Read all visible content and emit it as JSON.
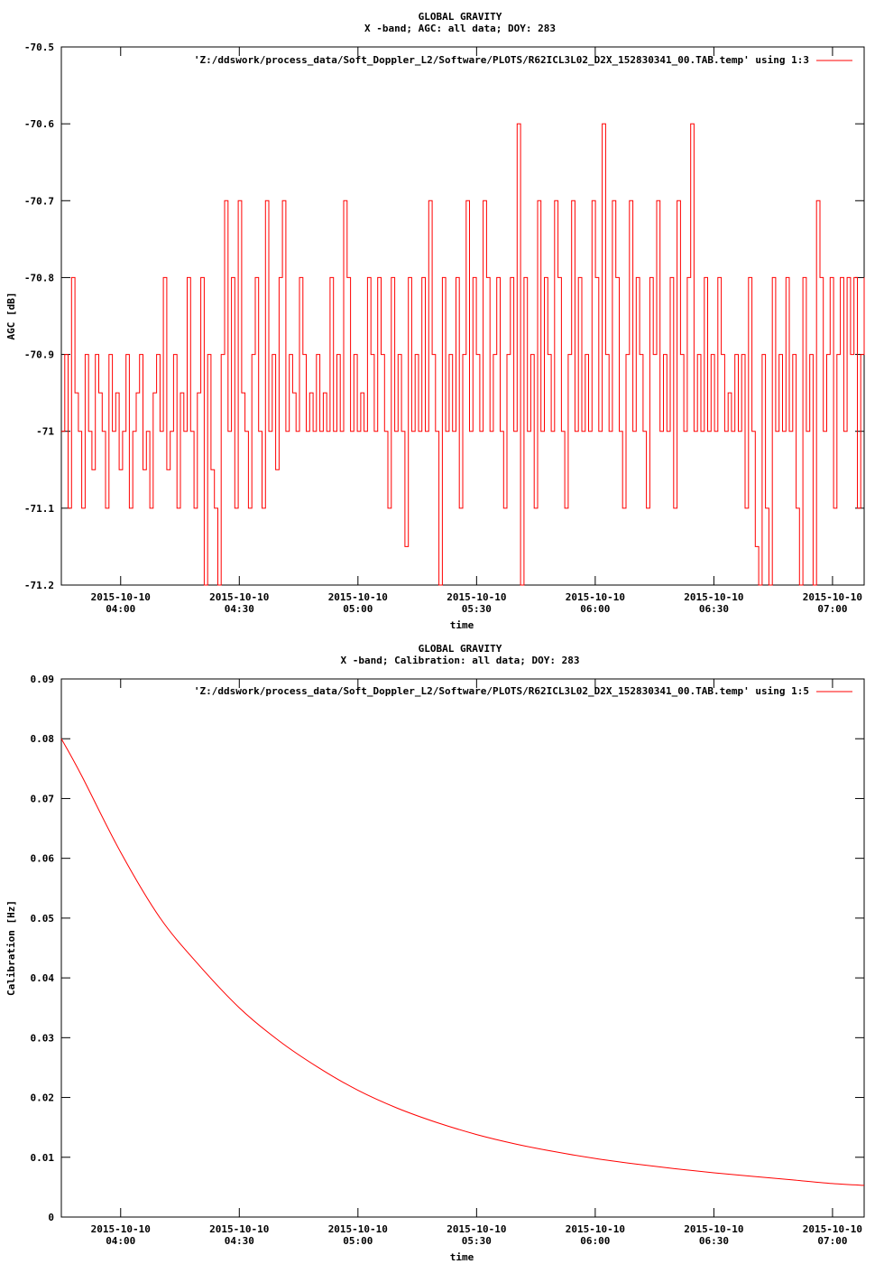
{
  "chart_data": [
    {
      "type": "line",
      "title": "GLOBAL GRAVITY",
      "subtitle": "X -band; AGC: all data; DOY: 283",
      "xlabel": "time",
      "ylabel": "AGC [dB]",
      "ylim": [
        -71.2,
        -70.5
      ],
      "xlim": [
        "2015-10-10 03:45",
        "2015-10-10 07:08"
      ],
      "grid": false,
      "legend_position": "top-right",
      "yticks": [
        -70.5,
        -70.6,
        -70.7,
        -70.8,
        -70.9,
        -71,
        -71.1,
        -71.2
      ],
      "ytick_labels": [
        "-70.5",
        "-70.6",
        "-70.7",
        "-70.8",
        "-70.9",
        "-71",
        "-71.1",
        "-71.2"
      ],
      "xticks": [
        "04:00",
        "04:30",
        "05:00",
        "05:30",
        "06:00",
        "06:30",
        "07:00"
      ],
      "xtick_date": "2015-10-10",
      "series": [
        {
          "name": "'Z:/ddswork/process_data/Soft_Doppler_L2/Software/PLOTS/R62ICL3L02_D2X_152830341_00.TAB.temp' using 1:3",
          "color": "#ff0000",
          "x_start": "2015-10-10 03:45",
          "x_end": "2015-10-10 07:08",
          "values": [
            -71.0,
            -70.9,
            -71.1,
            -70.8,
            -70.95,
            -71.0,
            -71.1,
            -70.9,
            -71.0,
            -71.05,
            -70.9,
            -70.95,
            -71.0,
            -71.1,
            -70.9,
            -71.0,
            -70.95,
            -71.05,
            -71.0,
            -70.9,
            -71.1,
            -71.0,
            -70.95,
            -70.9,
            -71.05,
            -71.0,
            -71.1,
            -70.95,
            -70.9,
            -71.0,
            -70.8,
            -71.05,
            -71.0,
            -70.9,
            -71.1,
            -70.95,
            -71.0,
            -70.8,
            -71.0,
            -71.1,
            -70.95,
            -70.8,
            -71.2,
            -70.9,
            -71.05,
            -71.1,
            -71.2,
            -70.9,
            -70.7,
            -71.0,
            -70.8,
            -71.1,
            -70.7,
            -70.95,
            -71.0,
            -71.1,
            -70.9,
            -70.8,
            -71.0,
            -71.1,
            -70.7,
            -71.0,
            -70.9,
            -71.05,
            -70.8,
            -70.7,
            -71.0,
            -70.9,
            -70.95,
            -71.0,
            -70.8,
            -70.9,
            -71.0,
            -70.95,
            -71.0,
            -70.9,
            -71.0,
            -70.95,
            -71.0,
            -70.8,
            -71.0,
            -70.9,
            -71.0,
            -70.7,
            -70.8,
            -71.0,
            -70.9,
            -71.0,
            -70.95,
            -71.0,
            -70.8,
            -70.9,
            -71.0,
            -70.8,
            -70.9,
            -71.0,
            -71.1,
            -70.8,
            -71.0,
            -70.9,
            -71.0,
            -71.15,
            -70.8,
            -71.0,
            -70.9,
            -71.0,
            -70.8,
            -71.0,
            -70.7,
            -70.9,
            -71.0,
            -71.2,
            -70.8,
            -71.0,
            -70.9,
            -71.0,
            -70.8,
            -71.1,
            -70.9,
            -70.7,
            -71.0,
            -70.8,
            -70.9,
            -71.0,
            -70.7,
            -70.8,
            -71.0,
            -70.9,
            -70.8,
            -71.0,
            -71.1,
            -70.9,
            -70.8,
            -71.0,
            -70.6,
            -71.2,
            -70.8,
            -71.0,
            -70.9,
            -71.1,
            -70.7,
            -71.0,
            -70.8,
            -70.9,
            -71.0,
            -70.7,
            -70.8,
            -71.0,
            -71.1,
            -70.9,
            -70.7,
            -71.0,
            -70.8,
            -71.0,
            -70.9,
            -71.0,
            -70.7,
            -70.8,
            -71.0,
            -70.6,
            -70.9,
            -71.0,
            -70.7,
            -70.8,
            -71.0,
            -71.1,
            -70.9,
            -70.7,
            -71.0,
            -70.8,
            -70.9,
            -71.0,
            -71.1,
            -70.8,
            -70.9,
            -70.7,
            -71.0,
            -70.9,
            -71.0,
            -70.8,
            -71.1,
            -70.7,
            -70.9,
            -71.0,
            -70.8,
            -70.6,
            -71.0,
            -70.9,
            -71.0,
            -70.8,
            -71.0,
            -70.9,
            -71.0,
            -70.8,
            -70.9,
            -71.0,
            -70.95,
            -71.0,
            -70.9,
            -71.0,
            -70.9,
            -71.1,
            -70.8,
            -71.0,
            -71.15,
            -71.2,
            -70.9,
            -71.1,
            -71.2,
            -70.8,
            -71.0,
            -70.9,
            -71.0,
            -70.8,
            -71.0,
            -70.9,
            -71.1,
            -71.2,
            -70.8,
            -71.0,
            -70.9,
            -71.2,
            -70.7,
            -70.8,
            -71.0,
            -70.9,
            -70.8,
            -71.1,
            -70.9,
            -70.8,
            -71.0,
            -70.8,
            -70.9,
            -70.8,
            -71.1,
            -70.9,
            -70.8
          ]
        }
      ]
    },
    {
      "type": "line",
      "title": "GLOBAL GRAVITY",
      "subtitle": "X -band; Calibration: all data; DOY: 283",
      "xlabel": "time",
      "ylabel": "Calibration [Hz]",
      "ylim": [
        0,
        0.09
      ],
      "xlim": [
        "2015-10-10 03:45",
        "2015-10-10 07:08"
      ],
      "grid": false,
      "legend_position": "top-right",
      "yticks": [
        0,
        0.01,
        0.02,
        0.03,
        0.04,
        0.05,
        0.06,
        0.07,
        0.08,
        0.09
      ],
      "ytick_labels": [
        "0",
        "0.01",
        "0.02",
        "0.03",
        "0.04",
        "0.05",
        "0.06",
        "0.07",
        "0.08",
        "0.09"
      ],
      "xticks": [
        "04:00",
        "04:30",
        "05:00",
        "05:30",
        "06:00",
        "06:30",
        "07:00"
      ],
      "xtick_date": "2015-10-10",
      "series": [
        {
          "name": "'Z:/ddswork/process_data/Soft_Doppler_L2/Software/PLOTS/R62ICL3L02_D2X_152830341_00.TAB.temp' using 1:5",
          "color": "#ff0000",
          "points": [
            [
              "2015-10-10 03:45",
              0.08
            ],
            [
              "2015-10-10 03:50",
              0.074
            ],
            [
              "2015-10-10 04:00",
              0.061
            ],
            [
              "2015-10-10 04:10",
              0.05
            ],
            [
              "2015-10-10 04:20",
              0.042
            ],
            [
              "2015-10-10 04:30",
              0.035
            ],
            [
              "2015-10-10 04:40",
              0.0295
            ],
            [
              "2015-10-10 04:50",
              0.025
            ],
            [
              "2015-10-10 05:00",
              0.0212
            ],
            [
              "2015-10-10 05:10",
              0.0182
            ],
            [
              "2015-10-10 05:20",
              0.0158
            ],
            [
              "2015-10-10 05:30",
              0.0138
            ],
            [
              "2015-10-10 05:40",
              0.0122
            ],
            [
              "2015-10-10 05:50",
              0.0109
            ],
            [
              "2015-10-10 06:00",
              0.0098
            ],
            [
              "2015-10-10 06:10",
              0.0089
            ],
            [
              "2015-10-10 06:20",
              0.0081
            ],
            [
              "2015-10-10 06:30",
              0.0074
            ],
            [
              "2015-10-10 06:40",
              0.0068
            ],
            [
              "2015-10-10 06:50",
              0.0062
            ],
            [
              "2015-10-10 07:00",
              0.0056
            ],
            [
              "2015-10-10 07:08",
              0.0053
            ]
          ]
        }
      ]
    }
  ]
}
